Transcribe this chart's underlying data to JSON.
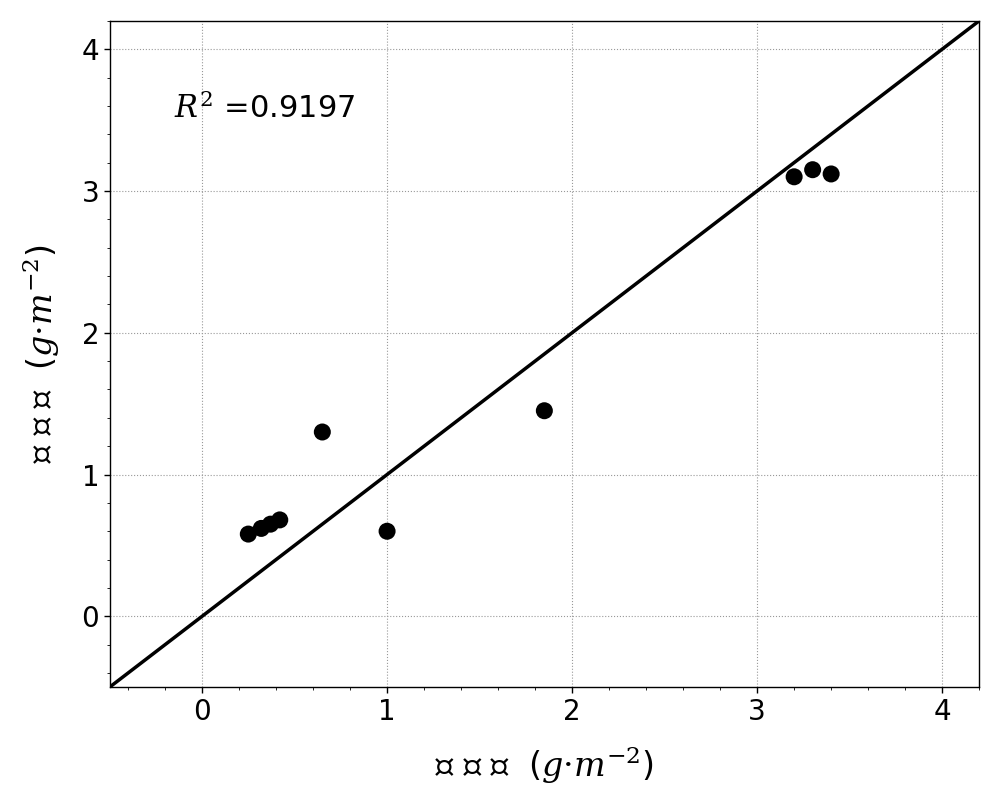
{
  "scatter_x": [
    0.25,
    0.32,
    0.37,
    0.42,
    0.65,
    1.0,
    1.85,
    3.2,
    3.3,
    3.4
  ],
  "scatter_y": [
    0.58,
    0.62,
    0.65,
    0.68,
    1.3,
    0.6,
    1.45,
    3.1,
    3.15,
    3.12
  ],
  "line_x": [
    -0.5,
    4.2
  ],
  "line_y": [
    -0.5,
    4.2
  ],
  "r2_text": "$R^2$ =0.9197",
  "r2_x": -0.15,
  "r2_y": 3.7,
  "xlabel": "测 量 值  ($g·m^{-2}$)",
  "ylabel": "预 测 值  ($g·m^{-2}$)",
  "xlim": [
    -0.5,
    4.2
  ],
  "ylim": [
    -0.5,
    4.2
  ],
  "xticks": [
    0,
    1,
    2,
    3,
    4
  ],
  "yticks": [
    0,
    1,
    2,
    3,
    4
  ],
  "marker_color": "black",
  "marker_size": 150,
  "line_color": "black",
  "line_width": 2.5,
  "grid_color": "#999999",
  "background_color": "white",
  "font_size_label": 24,
  "font_size_annotation": 22,
  "font_size_ticks": 20
}
